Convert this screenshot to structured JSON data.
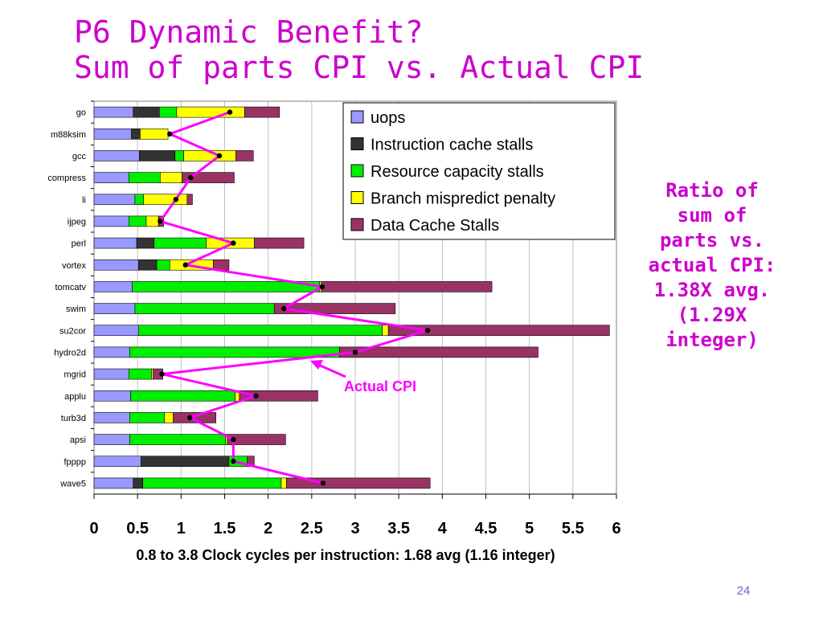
{
  "slide": {
    "title_lines": [
      "P6 Dynamic Benefit?",
      "Sum of parts CPI vs. Actual CPI"
    ],
    "side_note_lines": [
      "Ratio  of",
      "sum of",
      "parts vs.",
      "actual CPI:",
      "1.38X avg.",
      "(1.29X",
      "integer)"
    ],
    "page_number": "24"
  },
  "chart_data": {
    "type": "bar",
    "stacked": true,
    "orientation": "horizontal",
    "xlabel": "0.8 to 3.8 Clock cycles per instruction: 1.68 avg (1.16 integer)",
    "xlim": [
      0,
      6
    ],
    "xticks": [
      "0",
      "0.5",
      "1",
      "1.5",
      "2",
      "2.5",
      "3",
      "3.5",
      "4",
      "4.5",
      "5",
      "5.5",
      "6"
    ],
    "grid": true,
    "legend_position": "top-right",
    "categories": [
      "go",
      "m88ksim",
      "gcc",
      "compress",
      "li",
      "ijpeg",
      "perl",
      "vortex",
      "tomcatv",
      "swim",
      "su2cor",
      "hydro2d",
      "mgrid",
      "applu",
      "turb3d",
      "apsi",
      "fpppp",
      "wave5"
    ],
    "series": [
      {
        "name": "uops",
        "color": "#9999ff",
        "values": [
          0.45,
          0.43,
          0.52,
          0.4,
          0.47,
          0.4,
          0.49,
          0.51,
          0.44,
          0.47,
          0.51,
          0.41,
          0.4,
          0.42,
          0.41,
          0.41,
          0.54,
          0.45
        ]
      },
      {
        "name": "Instruction cache stalls",
        "color": "#333333",
        "values": [
          0.3,
          0.1,
          0.41,
          0.0,
          0.0,
          0.0,
          0.2,
          0.21,
          0.0,
          0.0,
          0.0,
          0.0,
          0.0,
          0.0,
          0.0,
          0.0,
          1.01,
          0.11
        ]
      },
      {
        "name": "Resource capacity stalls",
        "color": "#00ee00",
        "values": [
          0.2,
          0.0,
          0.1,
          0.36,
          0.1,
          0.2,
          0.6,
          0.15,
          2.15,
          1.6,
          2.8,
          2.41,
          0.26,
          1.2,
          0.4,
          1.1,
          0.21,
          1.59
        ]
      },
      {
        "name": "Branch mispredict penalty",
        "color": "#ffff00",
        "values": [
          0.78,
          0.32,
          0.6,
          0.25,
          0.5,
          0.14,
          0.55,
          0.5,
          0.02,
          0.0,
          0.07,
          0.0,
          0.02,
          0.05,
          0.1,
          0.02,
          0.0,
          0.06
        ]
      },
      {
        "name": "Data Cache Stalls",
        "color": "#993366",
        "values": [
          0.4,
          0.0,
          0.2,
          0.6,
          0.06,
          0.06,
          0.57,
          0.18,
          1.96,
          1.39,
          2.54,
          2.28,
          0.11,
          0.9,
          0.49,
          0.67,
          0.08,
          1.65
        ]
      }
    ],
    "actual_cpi": {
      "name": "Actual CPI",
      "color": "#ff00ff",
      "values": [
        1.56,
        0.87,
        1.44,
        1.11,
        0.94,
        0.76,
        1.6,
        1.05,
        2.62,
        2.18,
        3.83,
        3.0,
        0.78,
        1.86,
        1.1,
        1.6,
        1.6,
        2.63
      ]
    }
  }
}
